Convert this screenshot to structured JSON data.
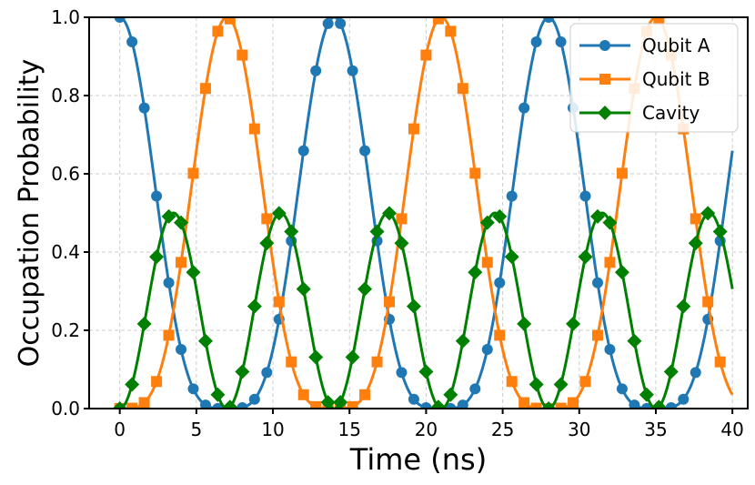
{
  "chart_data": {
    "type": "line",
    "title": "",
    "xlabel": "Time (ns)",
    "ylabel": "Occupation Probability",
    "xlim": [
      -2,
      41
    ],
    "ylim": [
      0,
      1
    ],
    "xticks": [
      0,
      5,
      10,
      15,
      20,
      25,
      30,
      35,
      40
    ],
    "xtick_labels": [
      "0",
      "5",
      "10",
      "15",
      "20",
      "25",
      "30",
      "35",
      "40"
    ],
    "yticks": [
      0.0,
      0.2,
      0.4,
      0.6,
      0.8,
      1.0
    ],
    "ytick_labels": [
      "0.0",
      "0.2",
      "0.4",
      "0.6",
      "0.8",
      "1.0"
    ],
    "grid": true,
    "legend_position": "top-right",
    "model": {
      "period_ns": 14.0,
      "t_start": 0,
      "t_end": 40
    },
    "marker_times": [
      0,
      0.8,
      1.6,
      2.4,
      3.2,
      4.0,
      4.8,
      5.6,
      6.4,
      7.2,
      8.0,
      8.8,
      9.6,
      10.4,
      11.2,
      12.0,
      12.8,
      13.6,
      14.4,
      15.2,
      16.0,
      16.8,
      17.6,
      18.4,
      19.2,
      20.0,
      20.8,
      21.6,
      22.4,
      23.2,
      24.0,
      24.8,
      25.6,
      26.4,
      27.2,
      28.0,
      28.8,
      29.6,
      30.4,
      31.2,
      32.0,
      32.8,
      33.6,
      34.4,
      35.2,
      36.0,
      36.8,
      37.6,
      38.4,
      39.2
    ],
    "series": [
      {
        "name": "Qubit A",
        "color": "#1f77b4",
        "marker": "circle",
        "formula": "((1+cos(w t))/2)^2"
      },
      {
        "name": "Qubit B",
        "color": "#ff7f0e",
        "marker": "square",
        "formula": "((1-cos(w t))/2)^2"
      },
      {
        "name": "Cavity",
        "color": "#008000",
        "marker": "diamond",
        "formula": "sin(w t)^2 / 2"
      }
    ]
  }
}
